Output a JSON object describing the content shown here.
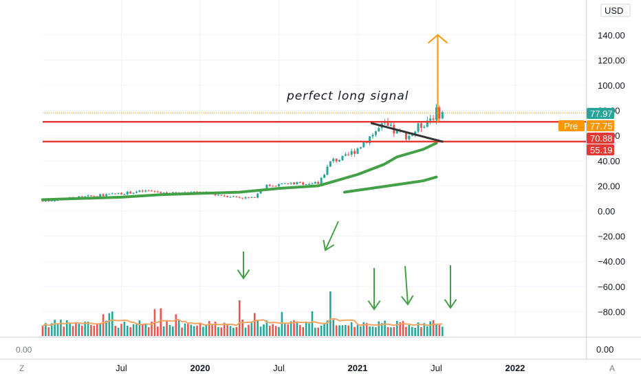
{
  "currency_label": "USD",
  "pre_label": "Pre",
  "annotation": "perfect long signal",
  "corner_left": "Z",
  "corner_right": "A",
  "volume_pane_left_label": "0.00",
  "volume_pane_right_label": "0.00",
  "colors": {
    "up": "#26a69a",
    "down": "#ef5350",
    "ma_green": "#43a047",
    "level_red": "#e53935",
    "arrow_orange": "#ff9800",
    "arrow_green": "#43a047",
    "volume_ma": "#f4a460",
    "trendline": "#333333"
  },
  "chart_data": {
    "type": "candlestick",
    "x_axis": {
      "ticks": [
        {
          "label": "Jul",
          "date": "2019-07",
          "bold": false
        },
        {
          "label": "2020",
          "date": "2020-01",
          "bold": true
        },
        {
          "label": "Jul",
          "date": "2020-07",
          "bold": false
        },
        {
          "label": "2021",
          "date": "2021-01",
          "bold": true
        },
        {
          "label": "Jul",
          "date": "2021-07",
          "bold": false
        },
        {
          "label": "2022",
          "date": "2022-01",
          "bold": true
        }
      ]
    },
    "y_axis": {
      "range": [
        -100,
        150
      ],
      "ticks": [
        "140.00",
        "120.00",
        "100.00",
        "80.00",
        "60.00",
        "40.00",
        "20.00",
        "0.00",
        "−20.00",
        "−40.00",
        "−60.00",
        "−80.00"
      ],
      "tick_values": [
        140,
        120,
        100,
        80,
        60,
        40,
        20,
        0,
        -20,
        -40,
        -60,
        -80
      ]
    },
    "price_tags": [
      {
        "value": 77.97,
        "label": "77.97",
        "color": "#26a69a"
      },
      {
        "value": 77.75,
        "label": "77.75",
        "color": "#ff9800"
      },
      {
        "value": 70.88,
        "label": "70.88",
        "color": "#e53935"
      },
      {
        "value": 55.19,
        "label": "55.19",
        "color": "#e53935"
      }
    ],
    "horizontal_levels": [
      {
        "value": 70.88,
        "color": "#e53935"
      },
      {
        "value": 55.19,
        "color": "#e53935"
      }
    ],
    "dotted_level": {
      "value": 77.97,
      "color": "#ff9800"
    },
    "price_series": [
      {
        "date": "2019-01",
        "value": 8
      },
      {
        "date": "2019-03",
        "value": 10
      },
      {
        "date": "2019-05",
        "value": 12
      },
      {
        "date": "2019-07",
        "value": 14
      },
      {
        "date": "2019-09",
        "value": 16
      },
      {
        "date": "2019-11",
        "value": 14
      },
      {
        "date": "2020-01",
        "value": 15
      },
      {
        "date": "2020-03",
        "value": 12
      },
      {
        "date": "2020-05",
        "value": 10
      },
      {
        "date": "2020-06",
        "value": 20
      },
      {
        "date": "2020-08",
        "value": 22
      },
      {
        "date": "2020-10",
        "value": 22
      },
      {
        "date": "2020-11",
        "value": 40
      },
      {
        "date": "2020-12",
        "value": 42
      },
      {
        "date": "2021-01",
        "value": 50
      },
      {
        "date": "2021-02",
        "value": 60
      },
      {
        "date": "2021-03",
        "value": 68
      },
      {
        "date": "2021-04",
        "value": 62
      },
      {
        "date": "2021-05",
        "value": 60
      },
      {
        "date": "2021-06",
        "value": 70
      },
      {
        "date": "2021-07",
        "value": 78
      }
    ],
    "moving_averages": [
      {
        "points": [
          [
            "2019-01",
            9
          ],
          [
            "2019-07",
            11
          ],
          [
            "2019-10",
            13
          ],
          [
            "2020-01",
            14
          ],
          [
            "2020-04",
            15
          ],
          [
            "2020-07",
            18
          ],
          [
            "2020-10",
            20
          ],
          [
            "2020-11",
            23
          ],
          [
            "2021-01",
            29
          ],
          [
            "2021-03",
            37
          ],
          [
            "2021-04",
            43
          ],
          [
            "2021-06",
            49
          ],
          [
            "2021-07",
            54
          ]
        ]
      },
      {
        "points": [
          [
            "2020-12",
            15
          ],
          [
            "2021-02",
            18
          ],
          [
            "2021-04",
            21
          ],
          [
            "2021-06",
            24
          ],
          [
            "2021-07",
            27
          ]
        ]
      }
    ],
    "trendline": {
      "from": [
        "2021-02",
        70
      ],
      "to": [
        "2021-07",
        55
      ]
    },
    "target_arrow": {
      "date": "2021-07",
      "from": 70,
      "to": 140
    },
    "volume_spikes": [
      {
        "date": "2020-04",
        "value": 52
      },
      {
        "date": "2020-11",
        "value": 65
      },
      {
        "date": "2021-02",
        "value": 14
      },
      {
        "date": "2021-05",
        "value": 16
      },
      {
        "date": "2021-07",
        "value": 18
      }
    ]
  }
}
